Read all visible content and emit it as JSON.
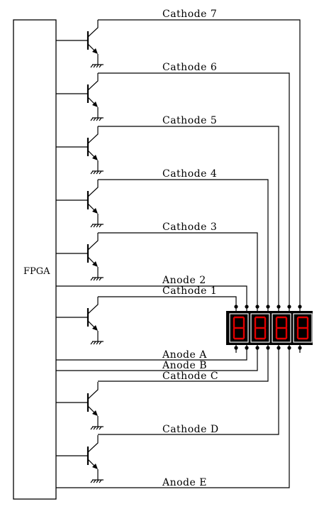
{
  "fpga": {
    "label": "FPGA"
  },
  "labels": {
    "cathode_7": "Cathode 7",
    "cathode_6": "Cathode 6",
    "cathode_5": "Cathode 5",
    "cathode_4": "Cathode 4",
    "cathode_3": "Cathode 3",
    "anode_2": "Anode 2",
    "cathode_1": "Cathode 1",
    "anode_a": "Anode A",
    "anode_b": "Anode B",
    "cathode_c": "Cathode C",
    "cathode_d": "Cathode D",
    "anode_e": "Anode E"
  },
  "display": {
    "digits": 4,
    "digit_color": "#e00000",
    "frame_color": "#000000"
  }
}
